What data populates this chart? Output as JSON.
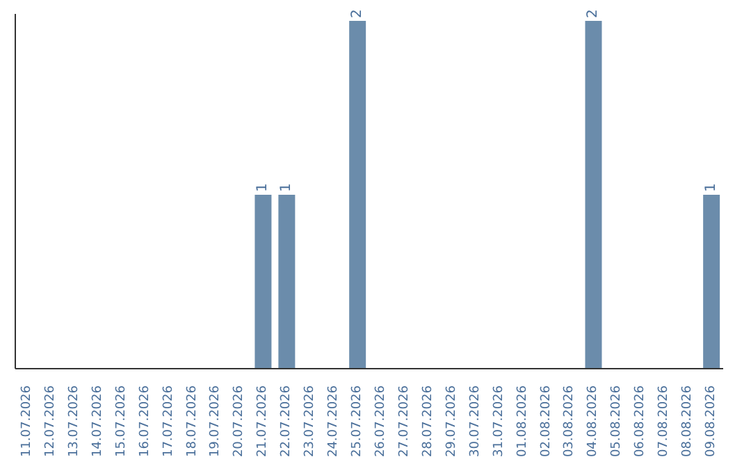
{
  "chart_data": {
    "type": "bar",
    "categories": [
      "11.07.2026",
      "12.07.2026",
      "13.07.2026",
      "14.07.2026",
      "15.07.2026",
      "16.07.2026",
      "17.07.2026",
      "18.07.2026",
      "19.07.2026",
      "20.07.2026",
      "21.07.2026",
      "22.07.2026",
      "23.07.2026",
      "24.07.2026",
      "25.07.2026",
      "26.07.2026",
      "27.07.2026",
      "28.07.2026",
      "29.07.2026",
      "30.07.2026",
      "31.07.2026",
      "01.08.2026",
      "02.08.2026",
      "03.08.2026",
      "04.08.2026",
      "05.08.2026",
      "06.08.2026",
      "07.08.2026",
      "08.08.2026",
      "09.08.2026"
    ],
    "values": [
      0,
      0,
      0,
      0,
      0,
      0,
      0,
      0,
      0,
      0,
      1,
      1,
      0,
      0,
      2,
      0,
      0,
      0,
      0,
      0,
      0,
      0,
      0,
      0,
      2,
      0,
      0,
      0,
      0,
      1
    ],
    "color": "#6b8cab",
    "ylim": [
      0,
      2.04
    ],
    "value_labels": [
      null,
      null,
      null,
      null,
      null,
      null,
      null,
      null,
      null,
      null,
      "1",
      "1",
      null,
      null,
      "2",
      null,
      null,
      null,
      null,
      null,
      null,
      null,
      null,
      null,
      "2",
      null,
      null,
      null,
      null,
      "1"
    ],
    "tick_labels": "x",
    "grid": false,
    "legend": false
  }
}
